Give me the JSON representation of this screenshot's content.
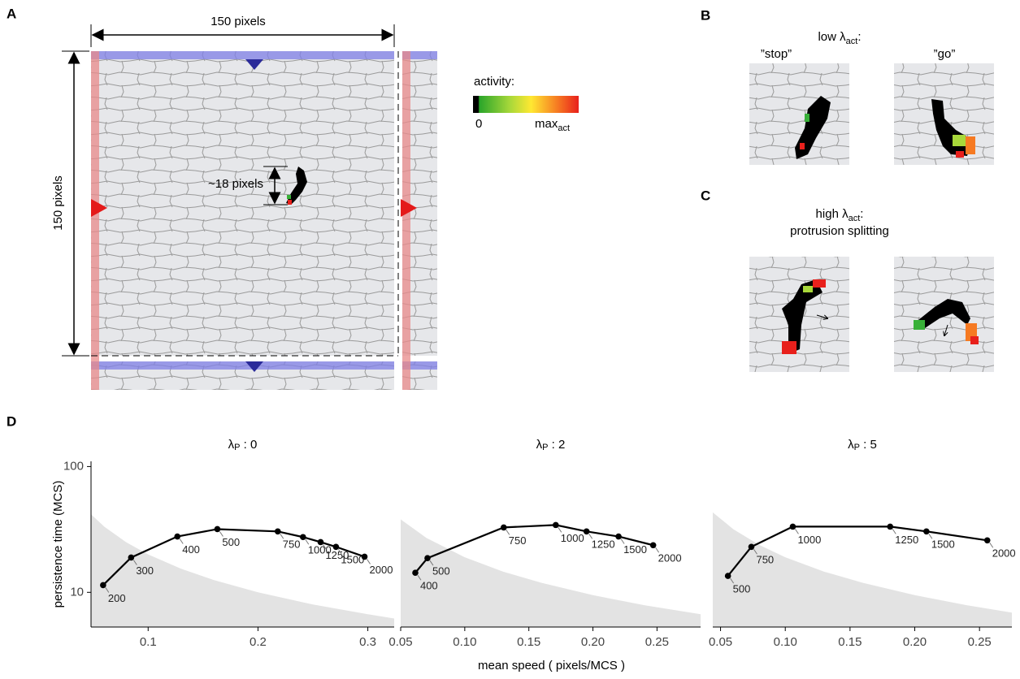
{
  "panels": {
    "a": {
      "label": "A",
      "width_label": "150 pixels",
      "height_label": "150 pixels",
      "size_label": "~18 pixels",
      "legend_title": "activity:",
      "legend_min": 0,
      "legend_max": {
        "text": "max",
        "subscript": "act"
      }
    },
    "b": {
      "label": "B",
      "title": {
        "text": "low λ",
        "subscript": "act",
        "suffix": ":"
      },
      "left_caption": "”stop”",
      "right_caption": "”go”"
    },
    "c": {
      "label": "C",
      "title": {
        "text": "high λ",
        "subscript": "act",
        "suffix": ":"
      },
      "subtitle": "protrusion splitting"
    },
    "d": {
      "label": "D"
    }
  },
  "chart_data": [
    {
      "type": "line",
      "title": {
        "symbol": "λ",
        "subscript": "P",
        "rest": " : 0"
      },
      "y_label": "persistence time (MCS)",
      "log_y": true,
      "color": "#000000",
      "x": [
        0.059,
        0.0845,
        0.1266,
        0.163,
        0.218,
        0.241,
        0.257,
        0.271,
        0.297
      ],
      "values": [
        11.4,
        18.9,
        27.8,
        31.8,
        30.5,
        27.5,
        25.1,
        23.0,
        19.2
      ],
      "point_labels": [
        200,
        300,
        400,
        500,
        750,
        1000,
        1250,
        1500,
        2000
      ],
      "xlim": [
        0.048,
        0.324
      ],
      "xticks": [
        0.1,
        0.2,
        0.3
      ],
      "ylim": [
        5.3,
        110
      ],
      "yticks": [
        10,
        100
      ],
      "band": {
        "color": "#e3e3e3",
        "x": [
          0.048,
          0.06,
          0.08,
          0.1,
          0.13,
          0.16,
          0.2,
          0.25,
          0.3,
          0.324
        ],
        "values": [
          41.7,
          33.3,
          25,
          20,
          15.4,
          12.5,
          10,
          8,
          6.7,
          6.2
        ]
      }
    },
    {
      "type": "line",
      "title": {
        "symbol": "λ",
        "subscript": "P",
        "rest": " : 2"
      },
      "x_label": "mean speed ( pixels/MCS )",
      "log_y": true,
      "color": "#000000",
      "x": [
        0.0614,
        0.0709,
        0.1304,
        0.171,
        0.195,
        0.22,
        0.247
      ],
      "values": [
        14.3,
        18.7,
        32.8,
        34.3,
        30.5,
        27.8,
        23.7
      ],
      "point_labels": [
        400,
        500,
        750,
        1000,
        1250,
        1500,
        2000
      ],
      "xlim": [
        0.05,
        0.284
      ],
      "xticks": [
        0.05,
        {
          "value": 0.1,
          "label": "0.10"
        },
        0.15,
        {
          "value": 0.2,
          "label": "0.20"
        },
        0.25
      ],
      "ylim": [
        5.3,
        110
      ],
      "band": {
        "color": "#e3e3e3",
        "x": [
          0.05,
          0.07,
          0.1,
          0.13,
          0.16,
          0.2,
          0.24,
          0.284
        ],
        "values": [
          38,
          27.1,
          19,
          14.6,
          11.9,
          9.5,
          7.9,
          6.7
        ]
      }
    },
    {
      "type": "line",
      "title": {
        "symbol": "λ",
        "subscript": "P",
        "rest": " : 5"
      },
      "log_y": true,
      "color": "#000000",
      "x": [
        0.0557,
        0.0738,
        0.1058,
        0.181,
        0.209,
        0.256
      ],
      "values": [
        13.5,
        23.0,
        33.3,
        33.3,
        30.5,
        25.9
      ],
      "point_labels": [
        500,
        750,
        1000,
        1250,
        1500,
        2000
      ],
      "xlim": [
        0.044,
        0.275
      ],
      "xticks": [
        0.05,
        {
          "value": 0.1,
          "label": "0.10"
        },
        0.15,
        {
          "value": 0.2,
          "label": "0.20"
        },
        0.25
      ],
      "ylim": [
        5.3,
        110
      ],
      "band": {
        "color": "#e3e3e3",
        "x": [
          0.044,
          0.06,
          0.08,
          0.1,
          0.13,
          0.16,
          0.2,
          0.24,
          0.275
        ],
        "values": [
          43.2,
          31.7,
          23.8,
          19,
          14.6,
          11.9,
          9.5,
          7.9,
          6.9
        ]
      }
    }
  ]
}
